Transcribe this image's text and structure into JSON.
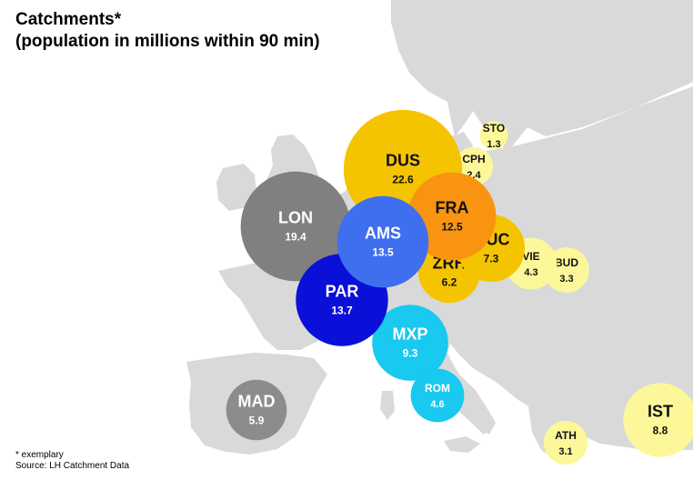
{
  "title": "Catchments*",
  "subtitle": "(population in millions within 90 min)",
  "footnote": "* exemplary",
  "source": "Source: LH Catchment Data",
  "colors": {
    "land": "#d9d9d9",
    "sea": "#ffffff"
  },
  "chart_data": {
    "type": "bubble-map",
    "unit": "population in millions within 90 min",
    "points": [
      {
        "label": "DUS",
        "value": 22.6,
        "color": "#f5c400"
      },
      {
        "label": "LON",
        "value": 19.4,
        "color": "#808080"
      },
      {
        "label": "PAR",
        "value": 13.7,
        "color": "#0a10d8"
      },
      {
        "label": "AMS",
        "value": 13.5,
        "color": "#3f6fee"
      },
      {
        "label": "FRA",
        "value": 12.5,
        "color": "#f89410"
      },
      {
        "label": "MXP",
        "value": 9.3,
        "color": "#19c9ef"
      },
      {
        "label": "IST",
        "value": 8.8,
        "color": "#fcf89a"
      },
      {
        "label": "MUC",
        "value": 7.3,
        "color": "#f5c400"
      },
      {
        "label": "ZRH",
        "value": 6.2,
        "color": "#f5c400"
      },
      {
        "label": "MAD",
        "value": 5.9,
        "color": "#8c8c8c"
      },
      {
        "label": "ROM",
        "value": 4.6,
        "color": "#19c9ef"
      },
      {
        "label": "VIE",
        "value": 4.3,
        "color": "#fcf89a"
      },
      {
        "label": "BUD",
        "value": 3.3,
        "color": "#fcf89a"
      },
      {
        "label": "ATH",
        "value": 3.1,
        "color": "#fcf89a"
      },
      {
        "label": "CPH",
        "value": 2.4,
        "color": "#fcf89a"
      },
      {
        "label": "STO",
        "value": 1.3,
        "color": "#fcf89a"
      }
    ]
  }
}
